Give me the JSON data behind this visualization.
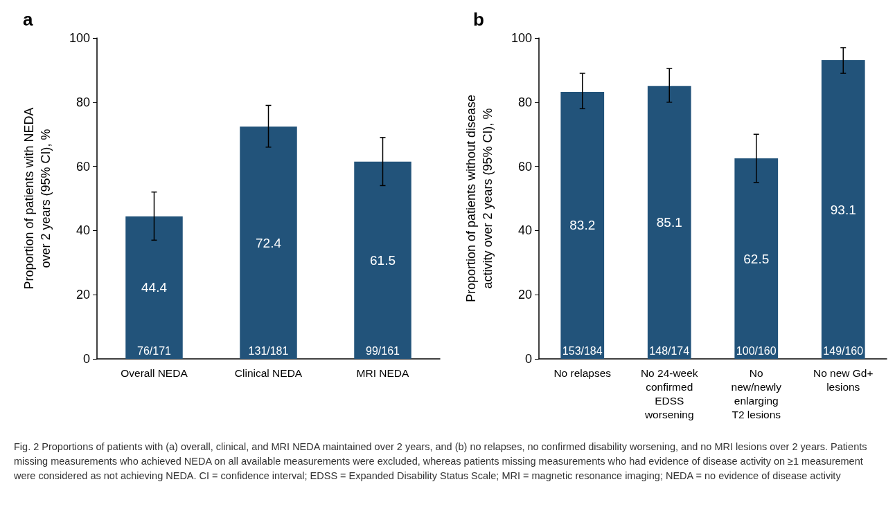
{
  "chart_data": [
    {
      "type": "bar",
      "title": "a",
      "ylabel": "Proportion of patients with NEDA\nover 2 years (95% CI), %",
      "categories": [
        "Overall NEDA",
        "Clinical NEDA",
        "MRI NEDA"
      ],
      "values": [
        44.4,
        72.4,
        61.5
      ],
      "color": "#22537a",
      "errors": [
        [
          37,
          52
        ],
        [
          66,
          79
        ],
        [
          54,
          69
        ]
      ],
      "ylim": [
        0,
        100
      ],
      "yticks": [
        0,
        20,
        40,
        60,
        80,
        100
      ],
      "grid": false,
      "data_labels": true,
      "annotations": [
        {
          "text": "76/171",
          "x": "Overall NEDA",
          "y": 0
        },
        {
          "text": "131/181",
          "x": "Clinical NEDA",
          "y": 0
        },
        {
          "text": "99/161",
          "x": "MRI NEDA",
          "y": 0
        }
      ]
    },
    {
      "type": "bar",
      "title": "b",
      "ylabel": "Proportion of patients without disease\nactivity over 2 years (95% CI), %",
      "categories": [
        "No relapses",
        "No 24-week\nconfirmed\nEDSS\nworsening",
        "No\nnew/newly\nenlarging\nT2 lesions",
        "No new Gd+\nlesions"
      ],
      "values": [
        83.2,
        85.1,
        62.5,
        93.1
      ],
      "color": "#22537a",
      "errors": [
        [
          78,
          89
        ],
        [
          80,
          90.5
        ],
        [
          55,
          70
        ],
        [
          89,
          97
        ]
      ],
      "ylim": [
        0,
        100
      ],
      "yticks": [
        0,
        20,
        40,
        60,
        80,
        100
      ],
      "grid": false,
      "data_labels": true,
      "annotations": [
        {
          "text": "153/184",
          "x": "No relapses",
          "y": 0
        },
        {
          "text": "148/174",
          "x": "No 24-week\nconfirmed\nEDSS\nworsening",
          "y": 0
        },
        {
          "text": "100/160",
          "x": "No\nnew/newly\nenlarging\nT2 lesions",
          "y": 0
        },
        {
          "text": "149/160",
          "x": "No new Gd+\nlesions",
          "y": 0
        },
        "Fig. 2 Proportions of patients with (a) overall, clinical, and MRI NEDA maintained over 2 years, and (b) no relapses, no confirmed disability worsening, and no MRI lesions over 2 years. Patients missing measurements who achieved NEDA on all available measurements were excluded, whereas patients missing measurements who had evidence of disease activity on ≥1 measurement were considered as not achieving NEDA. CI = confidence interval; EDSS = Expanded Disability Status Scale; MRI = magnetic resonance imaging; NEDA = no evidence of disease activity"
      ]
    }
  ]
}
